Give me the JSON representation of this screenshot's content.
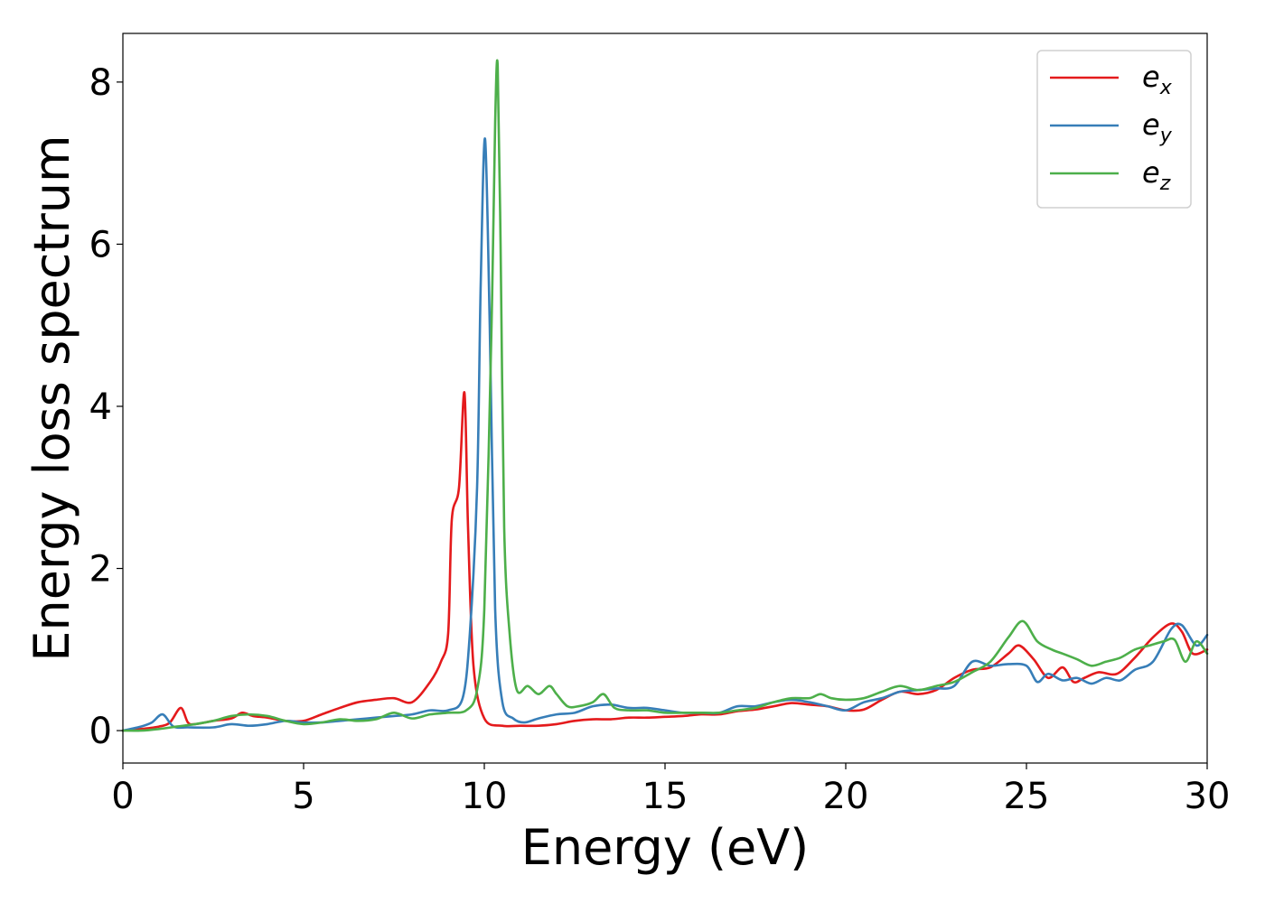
{
  "chart_data": {
    "type": "line",
    "xlabel": "Energy (eV)",
    "ylabel": "Energy loss spectrum",
    "xlim": [
      0,
      30
    ],
    "ylim": [
      -0.4,
      8.6
    ],
    "xticks": [
      0,
      5,
      10,
      15,
      20,
      25,
      30
    ],
    "yticks": [
      0,
      2,
      4,
      6,
      8
    ],
    "grid": false,
    "legend_position": "top-right",
    "series": [
      {
        "name": "e_x",
        "label_base": "e",
        "label_sub": "x",
        "color": "#e41a1c",
        "x": [
          0,
          0.5,
          1,
          1.3,
          1.6,
          1.8,
          2,
          2.5,
          3,
          3.3,
          3.6,
          4,
          4.5,
          5,
          5.5,
          6,
          6.5,
          7,
          7.5,
          8,
          8.5,
          8.8,
          9,
          9.1,
          9.3,
          9.45,
          9.55,
          9.7,
          10,
          10.5,
          11,
          11.5,
          12,
          12.5,
          13,
          13.5,
          14,
          14.5,
          15,
          15.5,
          16,
          16.5,
          17,
          17.5,
          18,
          18.5,
          19,
          19.5,
          20,
          20.5,
          21,
          21.5,
          22,
          22.5,
          23,
          23.5,
          24,
          24.5,
          24.8,
          25.2,
          25.6,
          26,
          26.3,
          26.6,
          27,
          27.5,
          28,
          28.5,
          29,
          29.3,
          29.6,
          30
        ],
        "y": [
          0.0,
          0.02,
          0.05,
          0.1,
          0.28,
          0.1,
          0.08,
          0.12,
          0.15,
          0.22,
          0.18,
          0.16,
          0.12,
          0.12,
          0.2,
          0.28,
          0.35,
          0.38,
          0.4,
          0.35,
          0.6,
          0.85,
          1.2,
          2.6,
          3.0,
          4.17,
          2.5,
          0.8,
          0.15,
          0.06,
          0.06,
          0.06,
          0.08,
          0.12,
          0.14,
          0.14,
          0.16,
          0.16,
          0.17,
          0.18,
          0.2,
          0.2,
          0.24,
          0.26,
          0.3,
          0.34,
          0.32,
          0.3,
          0.25,
          0.26,
          0.38,
          0.48,
          0.45,
          0.5,
          0.65,
          0.75,
          0.78,
          0.95,
          1.05,
          0.88,
          0.65,
          0.78,
          0.6,
          0.65,
          0.72,
          0.7,
          0.9,
          1.15,
          1.32,
          1.22,
          0.95,
          1.0
        ]
      },
      {
        "name": "e_y",
        "label_base": "e",
        "label_sub": "y",
        "color": "#377eb8",
        "x": [
          0,
          0.5,
          0.8,
          1.1,
          1.4,
          1.8,
          2.5,
          3,
          3.5,
          4,
          4.5,
          5,
          5.5,
          6,
          6.5,
          7,
          7.5,
          8,
          8.5,
          9,
          9.4,
          9.6,
          9.8,
          9.9,
          10.02,
          10.15,
          10.3,
          10.5,
          10.8,
          11.1,
          11.5,
          12,
          12.5,
          13,
          13.5,
          14,
          14.5,
          15,
          15.5,
          16,
          16.5,
          17,
          17.5,
          18,
          18.5,
          19,
          19.5,
          20,
          20.5,
          21,
          21.5,
          22,
          22.5,
          23,
          23.5,
          24,
          24.5,
          25,
          25.3,
          25.6,
          26,
          26.4,
          26.8,
          27.2,
          27.6,
          28,
          28.5,
          29,
          29.3,
          29.7,
          30
        ],
        "y": [
          0.0,
          0.05,
          0.1,
          0.2,
          0.05,
          0.04,
          0.04,
          0.08,
          0.06,
          0.08,
          0.12,
          0.1,
          0.1,
          0.12,
          0.14,
          0.16,
          0.18,
          0.2,
          0.25,
          0.25,
          0.4,
          1.2,
          3.0,
          5.5,
          7.3,
          5.0,
          1.5,
          0.35,
          0.15,
          0.1,
          0.15,
          0.2,
          0.22,
          0.3,
          0.32,
          0.28,
          0.28,
          0.25,
          0.22,
          0.22,
          0.22,
          0.3,
          0.3,
          0.35,
          0.38,
          0.35,
          0.3,
          0.25,
          0.35,
          0.4,
          0.48,
          0.5,
          0.52,
          0.55,
          0.85,
          0.8,
          0.82,
          0.8,
          0.6,
          0.7,
          0.62,
          0.65,
          0.58,
          0.65,
          0.62,
          0.75,
          0.85,
          1.25,
          1.3,
          1.05,
          1.18
        ]
      },
      {
        "name": "e_z",
        "label_base": "e",
        "label_sub": "z",
        "color": "#4daf4a",
        "x": [
          0,
          0.5,
          1,
          1.5,
          2,
          2.5,
          3,
          3.5,
          4,
          4.5,
          5,
          5.5,
          6,
          6.5,
          7,
          7.5,
          8,
          8.5,
          9,
          9.5,
          9.8,
          10.0,
          10.2,
          10.3,
          10.37,
          10.45,
          10.55,
          10.7,
          10.9,
          11.2,
          11.5,
          11.8,
          12,
          12.3,
          12.6,
          13,
          13.3,
          13.6,
          14,
          14.5,
          15,
          15.5,
          16,
          16.5,
          17,
          17.5,
          18,
          18.5,
          19,
          19.3,
          19.6,
          20,
          20.5,
          21,
          21.5,
          22,
          22.5,
          23,
          23.5,
          24,
          24.5,
          24.9,
          25.3,
          25.7,
          26,
          26.4,
          26.8,
          27.2,
          27.6,
          28,
          28.4,
          28.8,
          29.1,
          29.4,
          29.7,
          30
        ],
        "y": [
          0.0,
          0.0,
          0.02,
          0.05,
          0.08,
          0.12,
          0.18,
          0.2,
          0.18,
          0.12,
          0.08,
          0.1,
          0.14,
          0.12,
          0.14,
          0.22,
          0.15,
          0.2,
          0.22,
          0.25,
          0.5,
          1.5,
          5.0,
          7.5,
          8.2,
          6.0,
          2.5,
          1.2,
          0.5,
          0.55,
          0.45,
          0.55,
          0.45,
          0.3,
          0.3,
          0.35,
          0.45,
          0.28,
          0.25,
          0.25,
          0.22,
          0.22,
          0.22,
          0.22,
          0.25,
          0.28,
          0.35,
          0.4,
          0.4,
          0.45,
          0.4,
          0.38,
          0.4,
          0.48,
          0.55,
          0.5,
          0.55,
          0.6,
          0.72,
          0.85,
          1.15,
          1.35,
          1.1,
          1.0,
          0.95,
          0.88,
          0.8,
          0.85,
          0.9,
          1.0,
          1.05,
          1.1,
          1.12,
          0.85,
          1.1,
          0.95
        ]
      }
    ]
  }
}
